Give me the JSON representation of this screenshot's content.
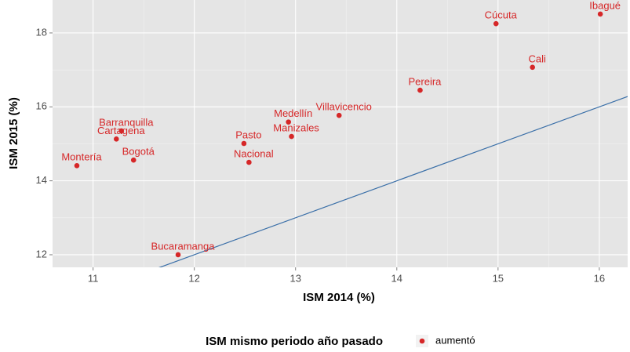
{
  "chart_data": {
    "type": "scatter",
    "x_label": "ISM 2014 (%)",
    "y_label": "ISM 2015 (%)",
    "xlim": [
      10.6,
      16.28
    ],
    "ylim": [
      11.66,
      18.89
    ],
    "xticks": [
      11,
      12,
      13,
      14,
      15,
      16
    ],
    "yticks": [
      12,
      14,
      16,
      18
    ],
    "grid": true,
    "series": [
      {
        "name": "aumentó",
        "color": "#d62728",
        "labels": [
          "Montería",
          "Cartagena",
          "Barranquilla",
          "Bogotá",
          "Bucaramanga",
          "Pasto",
          "Nacional",
          "Medellín",
          "Manizales",
          "Villavicencio",
          "Pereira",
          "Cúcuta",
          "Cali",
          "Ibagué"
        ],
        "x": [
          10.84,
          11.23,
          11.28,
          11.4,
          11.84,
          12.49,
          12.54,
          12.93,
          12.96,
          13.43,
          14.23,
          14.98,
          15.34,
          16.01
        ],
        "values": [
          14.41,
          15.13,
          15.35,
          14.56,
          12.0,
          15.01,
          14.5,
          15.59,
          15.2,
          15.77,
          16.45,
          18.25,
          17.07,
          18.51
        ]
      }
    ],
    "abline": {
      "slope": 1,
      "intercept": 0,
      "color": "#3a6fa8"
    },
    "legend_title": "ISM mismo periodo año pasado",
    "legend_position": "bottom"
  }
}
